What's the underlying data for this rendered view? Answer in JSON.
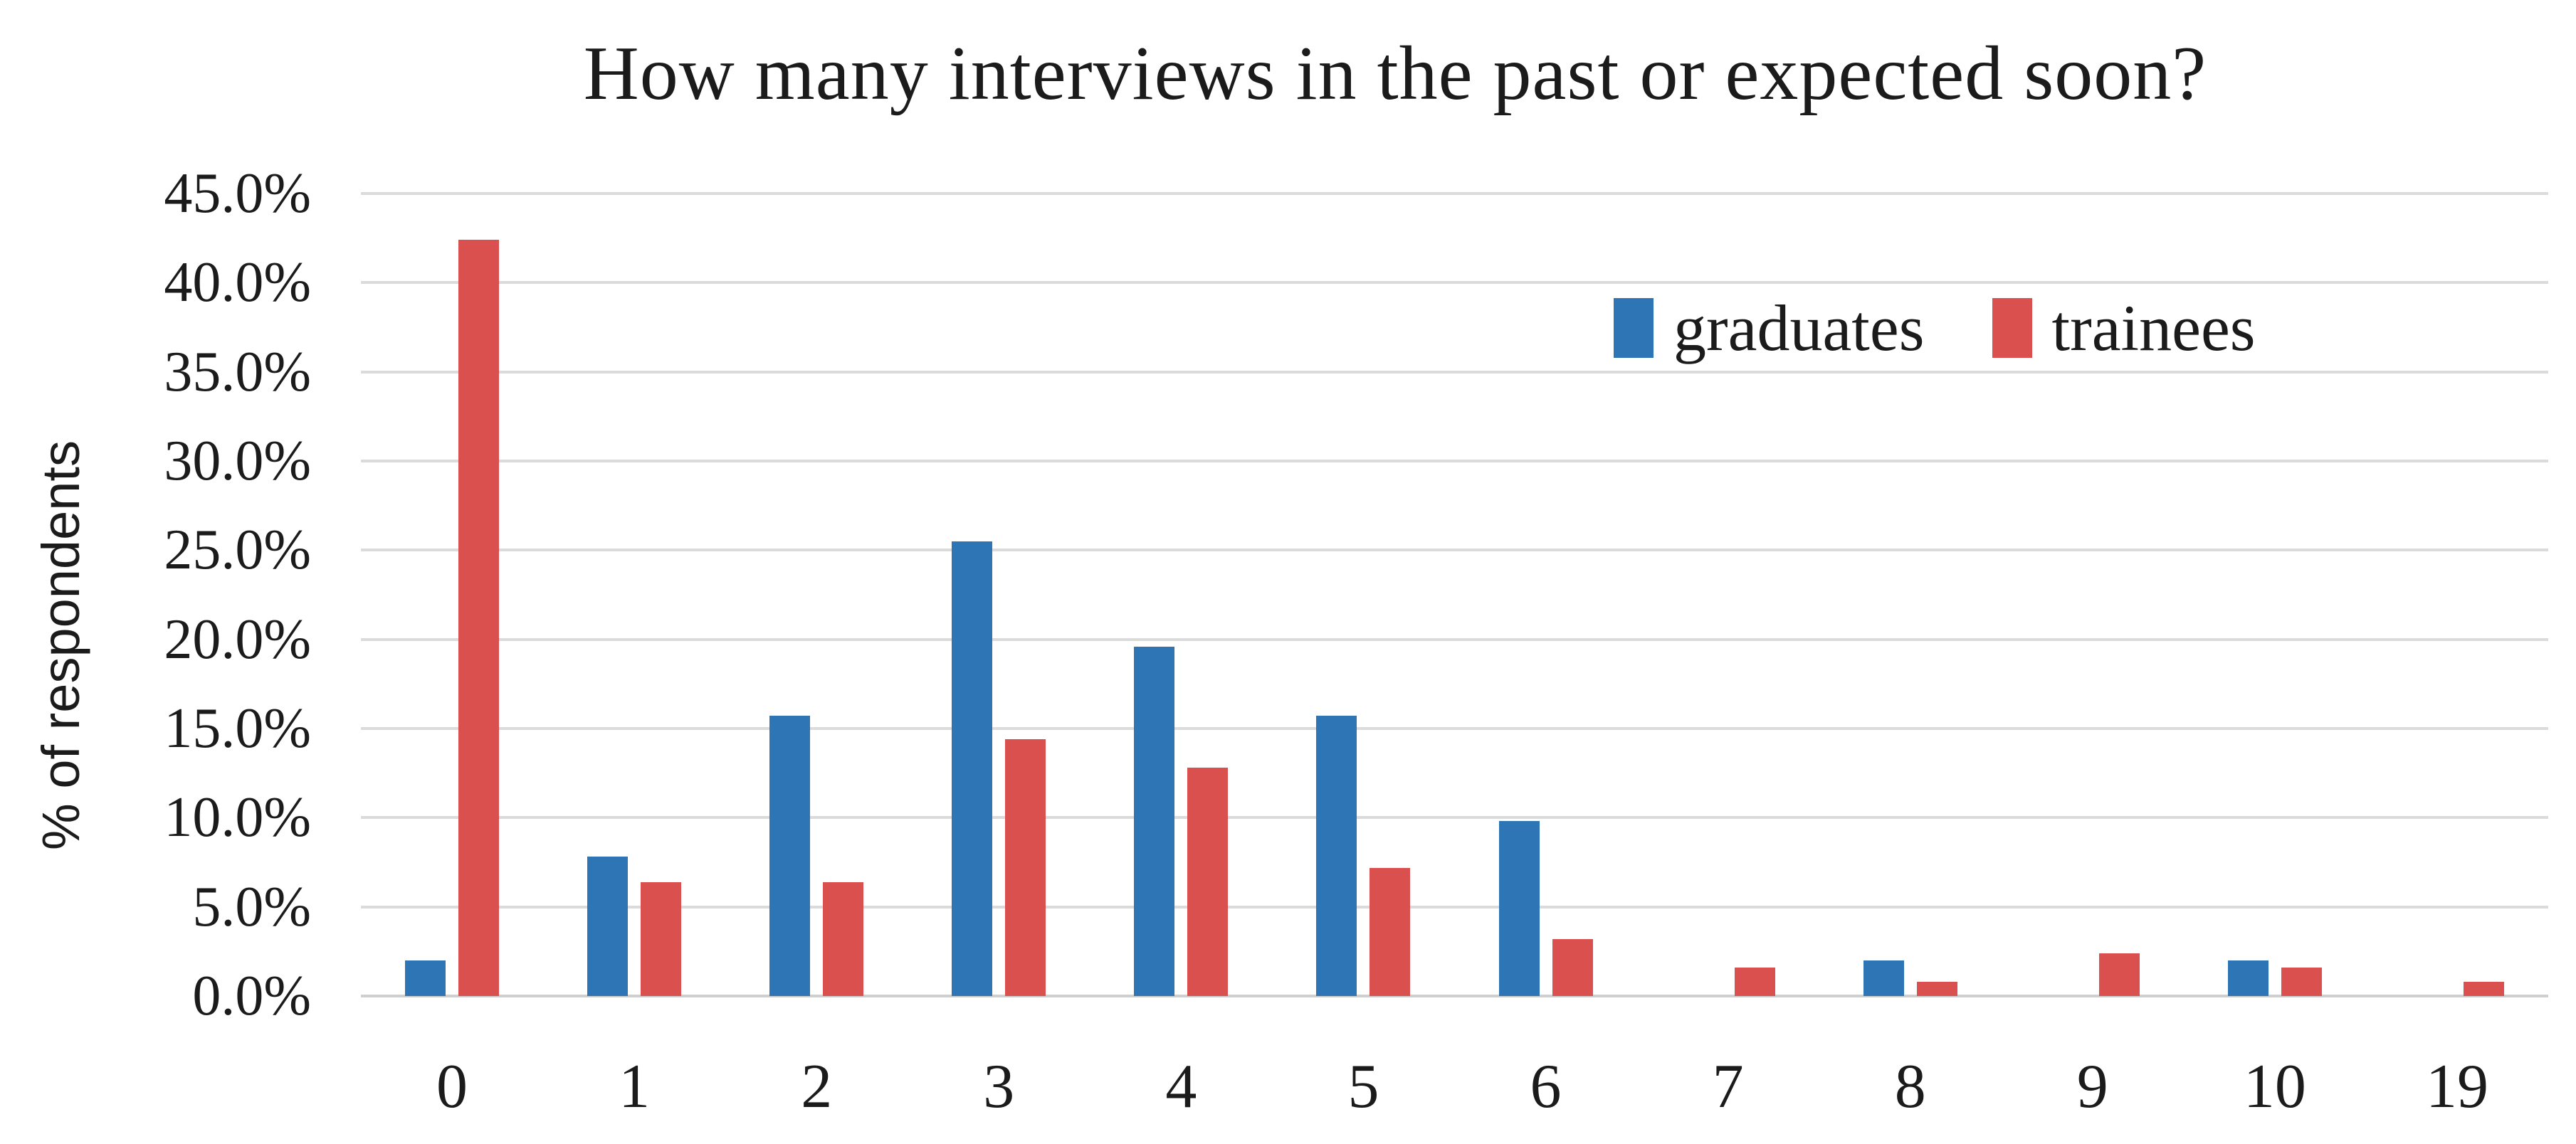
{
  "chart_data": {
    "type": "bar",
    "title": "How many interviews in the past or expected soon?",
    "xlabel": "",
    "ylabel": "% of respondents",
    "categories": [
      "0",
      "1",
      "2",
      "3",
      "4",
      "5",
      "6",
      "7",
      "8",
      "9",
      "10",
      "19"
    ],
    "series": [
      {
        "name": "graduates",
        "color": "#2e75b6",
        "values": [
          2.0,
          7.8,
          15.7,
          25.5,
          19.6,
          15.7,
          9.8,
          0,
          2.0,
          0,
          2.0,
          0
        ]
      },
      {
        "name": "trainees",
        "color": "#d9504e",
        "values": [
          42.4,
          6.4,
          6.4,
          14.4,
          12.8,
          7.2,
          3.2,
          1.6,
          0.8,
          2.4,
          1.6,
          0.8
        ]
      }
    ],
    "ylim": [
      0,
      45
    ],
    "ytick_step": 5,
    "ytick_labels": [
      "45.0%",
      "40.0%",
      "35.0%",
      "30.0%",
      "25.0%",
      "20.0%",
      "15.0%",
      "10.0%",
      "5.0%",
      "0.0%"
    ],
    "grid": true,
    "legend_position": "inside-upper-right"
  },
  "colors": {
    "background": "#ffffff",
    "gridline": "#dbdbdb",
    "axis_line": "#cfcfcf",
    "text": "#1b1b1b"
  }
}
